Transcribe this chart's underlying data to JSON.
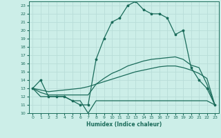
{
  "xlabel": "Humidex (Indice chaleur)",
  "x_labels": [
    "0",
    "1",
    "2",
    "3",
    "4",
    "5",
    "6",
    "7",
    "8",
    "9",
    "10",
    "11",
    "12",
    "13",
    "14",
    "15",
    "16",
    "17",
    "18",
    "19",
    "20",
    "21",
    "22",
    "23"
  ],
  "ylim": [
    10,
    23.5
  ],
  "xlim": [
    -0.5,
    23.5
  ],
  "yticks": [
    10,
    11,
    12,
    13,
    14,
    15,
    16,
    17,
    18,
    19,
    20,
    21,
    22,
    23
  ],
  "bg_color": "#cceee8",
  "line_color": "#1a6b5a",
  "grid_color": "#b8ddd8",
  "line_main": [
    13.0,
    14.0,
    12.0,
    12.0,
    12.0,
    11.5,
    11.0,
    11.0,
    16.5,
    19.0,
    21.0,
    21.5,
    23.0,
    23.5,
    22.5,
    22.0,
    22.0,
    21.5,
    19.5,
    20.0,
    15.5,
    14.0,
    13.0,
    11.0
  ],
  "line_avg": [
    13.0,
    12.5,
    12.2,
    12.2,
    12.2,
    12.2,
    12.2,
    12.2,
    13.5,
    14.2,
    14.8,
    15.2,
    15.7,
    16.0,
    16.3,
    16.5,
    16.6,
    16.7,
    16.8,
    16.5,
    15.8,
    15.5,
    13.5,
    11.0
  ],
  "line_min": [
    13.0,
    12.0,
    12.0,
    12.0,
    12.0,
    11.5,
    11.5,
    10.0,
    11.5,
    11.5,
    11.5,
    11.5,
    11.5,
    11.5,
    11.5,
    11.5,
    11.5,
    11.5,
    11.5,
    11.5,
    11.5,
    11.5,
    11.5,
    11.0
  ],
  "line_trend": [
    13.0,
    12.8,
    12.6,
    12.7,
    12.8,
    12.9,
    13.0,
    13.2,
    13.5,
    13.8,
    14.1,
    14.4,
    14.7,
    15.0,
    15.2,
    15.4,
    15.6,
    15.7,
    15.7,
    15.5,
    15.2,
    14.8,
    14.2,
    11.0
  ]
}
